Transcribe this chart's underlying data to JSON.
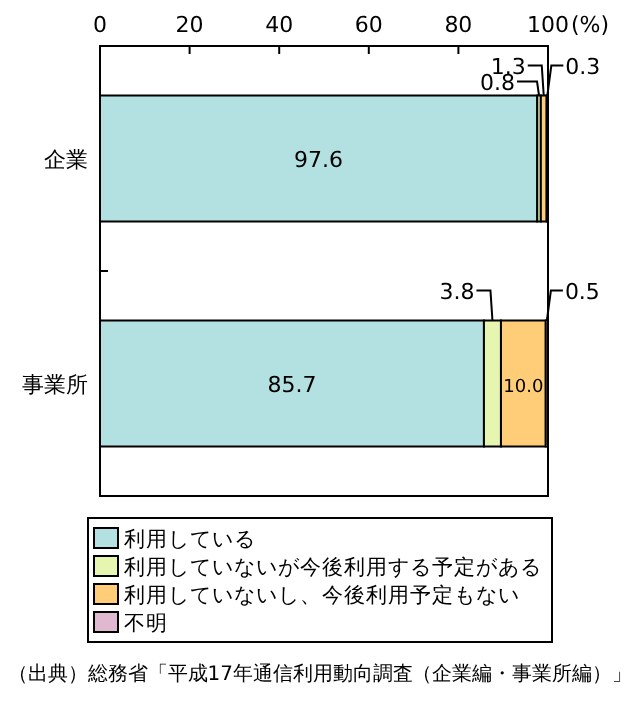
{
  "chart_data": {
    "type": "bar",
    "orientation": "horizontal",
    "stacked": true,
    "categories": [
      "企業",
      "事業所"
    ],
    "series": [
      {
        "name": "利用している",
        "color": "#b3e0e0",
        "values": [
          97.6,
          85.7
        ],
        "value_labels": [
          "97.6",
          "85.7"
        ]
      },
      {
        "name": "利用していないが今後利用する予定がある",
        "color": "#e6f5b0",
        "values": [
          0.8,
          3.8
        ],
        "value_labels": [
          "0.8",
          "3.8"
        ]
      },
      {
        "name": "利用していないし、今後利用予定もない",
        "color": "#ffcc77",
        "values": [
          1.3,
          10.0
        ],
        "value_labels": [
          "1.3",
          "10.0"
        ]
      },
      {
        "name": "不明",
        "color": "#e0b8d0",
        "values": [
          0.3,
          0.5
        ],
        "value_labels": [
          "0.3",
          "0.5"
        ]
      }
    ],
    "xlim": [
      0,
      100
    ],
    "xticks": [
      0,
      20,
      40,
      60,
      80,
      100
    ],
    "xlabel": "(%)",
    "legend": "bottom",
    "annotations": [
      "（出典）総務省「平成17年通信利用動向調査（企業編・事業所編）」"
    ]
  }
}
